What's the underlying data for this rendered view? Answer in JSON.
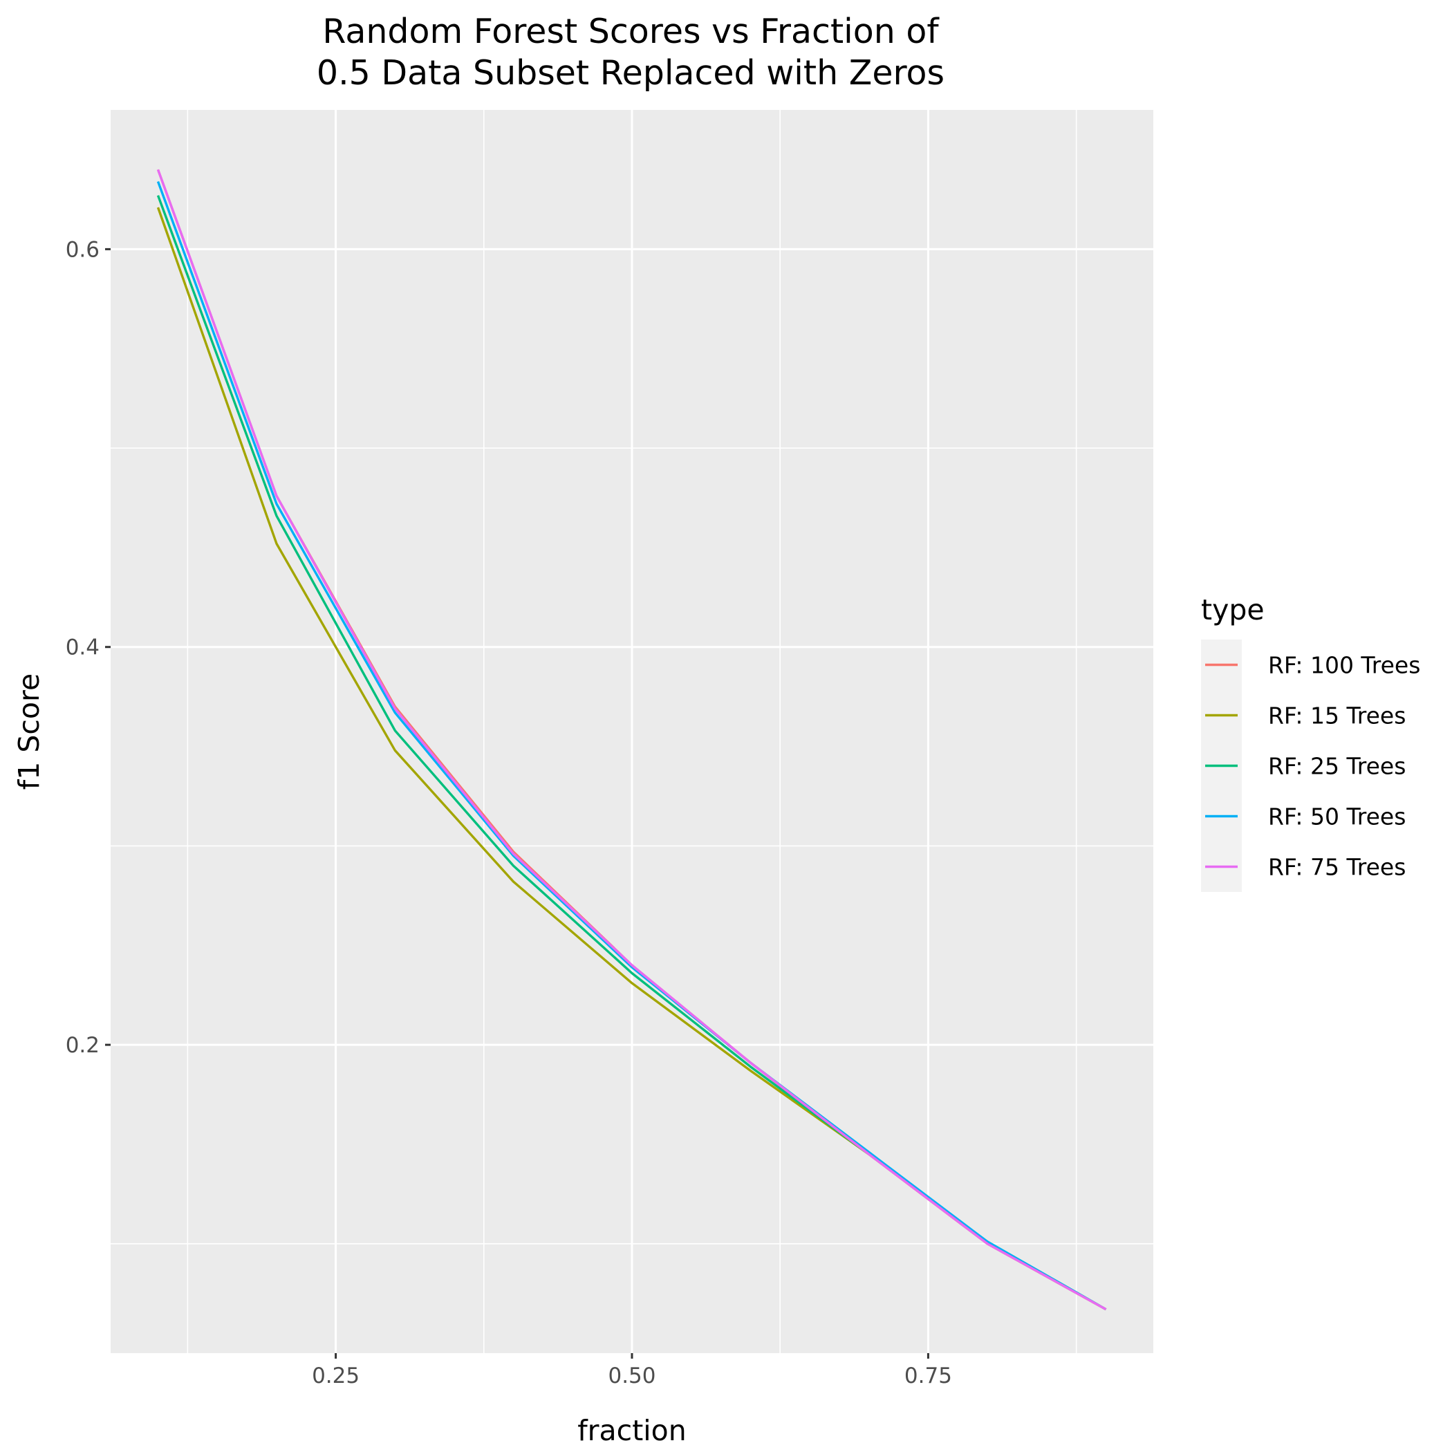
{
  "chart_data": {
    "type": "line",
    "title": [
      "Random Forest Scores vs Fraction of",
      "0.5 Data Subset Replaced with Zeros"
    ],
    "xlabel": "fraction",
    "ylabel": "f1 Score",
    "xlim": [
      0.06,
      0.94
    ],
    "ylim": [
      0.045,
      0.67
    ],
    "x_ticks": [
      0.25,
      0.5,
      0.75
    ],
    "x_tick_labels": [
      "0.25",
      "0.50",
      "0.75"
    ],
    "y_ticks": [
      0.2,
      0.4,
      0.6
    ],
    "y_tick_labels": [
      "0.2",
      "0.4",
      "0.6"
    ],
    "x_minor_grid": [
      0.125,
      0.375,
      0.625,
      0.875
    ],
    "y_minor_grid": [
      0.1,
      0.3,
      0.5
    ],
    "grid": true,
    "background": "#ebebeb",
    "legend": {
      "title": "type",
      "position": "right"
    },
    "x": [
      0.1,
      0.2,
      0.3,
      0.4,
      0.5,
      0.6,
      0.7,
      0.8,
      0.9
    ],
    "series": [
      {
        "name": "RF: 100 Trees",
        "color": "#F8766D",
        "values": [
          0.64,
          0.476,
          0.37,
          0.297,
          0.24,
          0.191,
          0.145,
          0.1,
          0.067
        ]
      },
      {
        "name": "RF: 15 Trees",
        "color": "#A3A500",
        "values": [
          0.621,
          0.452,
          0.348,
          0.282,
          0.231,
          0.187,
          0.145,
          0.1,
          0.067
        ]
      },
      {
        "name": "RF: 25 Trees",
        "color": "#00BF7D",
        "values": [
          0.627,
          0.466,
          0.358,
          0.29,
          0.236,
          0.189,
          0.145,
          0.101,
          0.067
        ]
      },
      {
        "name": "RF: 50 Trees",
        "color": "#00B0F6",
        "values": [
          0.634,
          0.472,
          0.367,
          0.295,
          0.239,
          0.191,
          0.146,
          0.101,
          0.067
        ]
      },
      {
        "name": "RF: 75 Trees",
        "color": "#E76BF3",
        "values": [
          0.64,
          0.476,
          0.369,
          0.296,
          0.24,
          0.191,
          0.145,
          0.1,
          0.067
        ]
      }
    ]
  }
}
